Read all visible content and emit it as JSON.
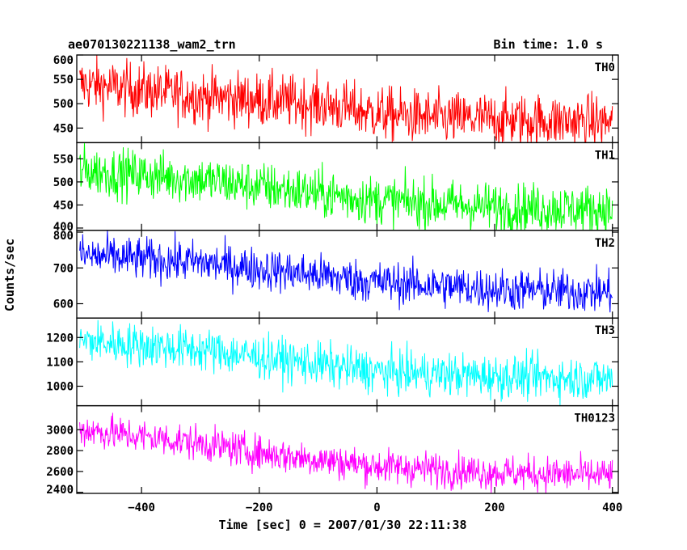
{
  "header": {
    "title": "ae070130221138_wam2_trn",
    "bin_time": "Bin time: 1.0 s"
  },
  "axes": {
    "ylabel": "Counts/sec",
    "xlabel": "Time [sec] 0 = 2007/01/30 22:11:38"
  },
  "chart_data": {
    "type": "line",
    "x_range": [
      -510,
      410
    ],
    "x_ticks": [
      -400,
      -200,
      0,
      200,
      400
    ],
    "x_tick_labels": [
      "−400",
      "−200",
      "0",
      "200",
      "400"
    ],
    "bin_time_s": 1.0,
    "panels": [
      {
        "label": "TH0",
        "color": "#ff0000",
        "ylim": [
          420,
          600
        ],
        "yticks": [
          450,
          500,
          550,
          600
        ],
        "trend": [
          [
            -500,
            540
          ],
          [
            -300,
            515
          ],
          [
            -100,
            500
          ],
          [
            0,
            480
          ],
          [
            100,
            470
          ],
          [
            400,
            462
          ]
        ],
        "noise": 28
      },
      {
        "label": "TH1",
        "color": "#00ff00",
        "ylim": [
          395,
          585
        ],
        "yticks": [
          400,
          450,
          500,
          550
        ],
        "trend": [
          [
            -500,
            525
          ],
          [
            -300,
            505
          ],
          [
            -100,
            475
          ],
          [
            0,
            460
          ],
          [
            200,
            445
          ],
          [
            400,
            440
          ]
        ],
        "noise": 27
      },
      {
        "label": "TH2",
        "color": "#0000ff",
        "ylim": [
          560,
          805
        ],
        "yticks": [
          600,
          700,
          800
        ],
        "trend": [
          [
            -500,
            735
          ],
          [
            -300,
            715
          ],
          [
            -100,
            680
          ],
          [
            0,
            660
          ],
          [
            200,
            640
          ],
          [
            400,
            632
          ]
        ],
        "noise": 30
      },
      {
        "label": "TH3",
        "color": "#00ffff",
        "ylim": [
          920,
          1280
        ],
        "yticks": [
          1000,
          1100,
          1200
        ],
        "trend": [
          [
            -500,
            1185
          ],
          [
            -300,
            1150
          ],
          [
            -200,
            1120
          ],
          [
            0,
            1060
          ],
          [
            200,
            1040
          ],
          [
            400,
            1030
          ]
        ],
        "noise": 45
      },
      {
        "label": "TH0123",
        "color": "#ff00ff",
        "ylim": [
          2390,
          3230
        ],
        "yticks": [
          2400,
          2600,
          2800,
          3000
        ],
        "trend": [
          [
            -500,
            3000
          ],
          [
            -300,
            2870
          ],
          [
            -200,
            2780
          ],
          [
            0,
            2650
          ],
          [
            200,
            2590
          ],
          [
            400,
            2560
          ]
        ],
        "noise": 85
      }
    ]
  }
}
